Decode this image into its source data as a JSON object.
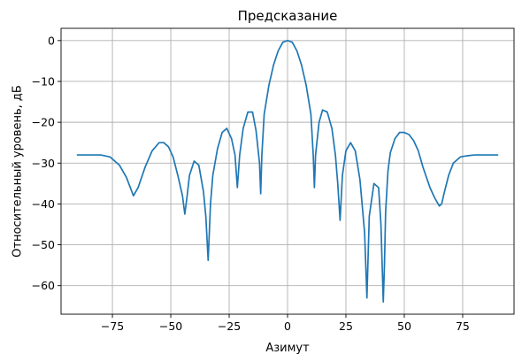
{
  "chart_data": {
    "type": "line",
    "title": "Предсказание",
    "xlabel": "Азимут",
    "ylabel": "Относительный уровень, дБ",
    "xlim": [
      -97,
      97
    ],
    "ylim": [
      -67,
      3
    ],
    "xticks": [
      -75,
      -50,
      -25,
      0,
      25,
      50,
      75
    ],
    "yticks": [
      0,
      -10,
      -20,
      -30,
      -40,
      -50,
      -60
    ],
    "xtick_labels": [
      "−75",
      "−50",
      "−25",
      "0",
      "25",
      "50",
      "75"
    ],
    "ytick_labels": [
      "0",
      "−10",
      "−20",
      "−30",
      "−40",
      "−50",
      "−60"
    ],
    "grid": true,
    "series": [
      {
        "color": "#1f77b4",
        "x": [
          -90,
          -80,
          -76,
          -72,
          -69,
          -66,
          -64,
          -61,
          -58,
          -55,
          -53,
          -51,
          -49,
          -47,
          -45,
          -44,
          -43,
          -42,
          -40,
          -38,
          -36,
          -35,
          -34,
          -33.5,
          -33,
          -32,
          -30,
          -28,
          -26,
          -24,
          -22.5,
          -21.5,
          -20.5,
          -19,
          -17,
          -15,
          -13.5,
          -12,
          -11.5,
          -11,
          -10,
          -8,
          -6,
          -4,
          -2,
          0,
          2,
          4,
          6,
          8,
          10,
          11,
          11.5,
          12,
          13.5,
          15,
          17,
          19,
          20.5,
          21.5,
          22.5,
          23.5,
          25,
          27,
          29,
          31,
          33,
          34,
          35,
          37,
          39,
          40,
          41,
          41.5,
          42,
          43,
          44,
          46,
          48,
          50,
          52,
          54,
          56,
          58,
          61,
          63,
          65,
          66,
          67,
          69,
          71,
          74,
          77,
          80,
          85,
          90
        ],
        "y": [
          -28,
          -28,
          -28.5,
          -30.5,
          -33.5,
          -38,
          -36,
          -31,
          -27,
          -25,
          -25,
          -26,
          -28.5,
          -33,
          -38,
          -42.5,
          -38,
          -33,
          -29.5,
          -30.5,
          -37,
          -43,
          -53.8,
          -47,
          -40,
          -33,
          -26.5,
          -22.5,
          -21.5,
          -24,
          -28,
          -36,
          -28,
          -21.5,
          -17.5,
          -17.5,
          -22,
          -30,
          -37.5,
          -28,
          -18,
          -11,
          -6,
          -2.5,
          -0.4,
          0,
          -0.4,
          -2.5,
          -6,
          -11,
          -18,
          -28,
          -36,
          -28,
          -20,
          -17,
          -17.5,
          -21.5,
          -28,
          -35,
          -44,
          -33,
          -27,
          -25,
          -27,
          -34,
          -47,
          -63,
          -43,
          -35,
          -36,
          -45,
          -64,
          -55,
          -42,
          -32,
          -27.5,
          -24,
          -22.5,
          -22.5,
          -23,
          -24.5,
          -27,
          -31,
          -36,
          -38.5,
          -40.5,
          -40,
          -37.5,
          -33,
          -30,
          -28.5,
          -28.2,
          -28,
          -28,
          -28
        ]
      }
    ]
  }
}
